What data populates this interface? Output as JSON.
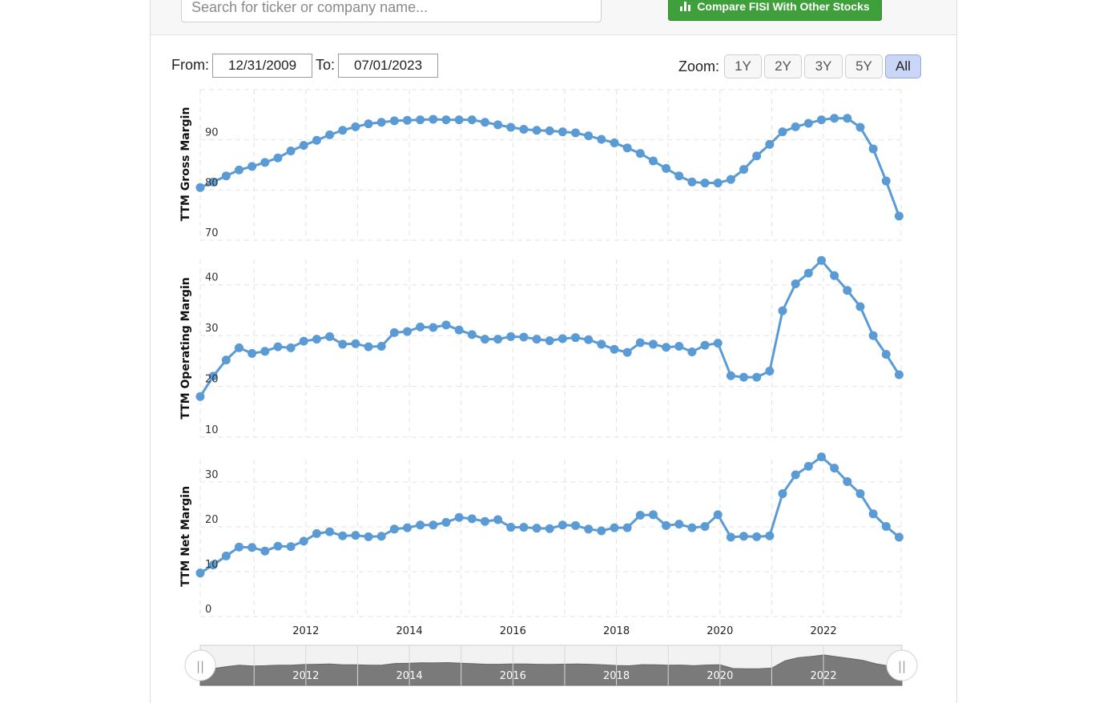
{
  "search": {
    "placeholder": "Search for ticker or company name..."
  },
  "compare_button": {
    "label": "Compare FISI With Other Stocks"
  },
  "range": {
    "from_label": "From:",
    "from_value": "12/31/2009",
    "to_label": "To:",
    "to_value": "07/01/2023"
  },
  "zoom": {
    "label": "Zoom:",
    "options": [
      "1Y",
      "2Y",
      "3Y",
      "5Y",
      "All"
    ],
    "active": "All"
  },
  "colors": {
    "series": "#5b9bd5",
    "grid": "#e3e3e3",
    "navigator_fill": "#7a7a7a",
    "active_zoom": "#c9d6f7"
  },
  "chart_data": {
    "type": "line",
    "x_start": 2009.96,
    "x_step": 0.25,
    "xlim": [
      2009.96,
      2023.5
    ],
    "x_ticks": [
      "2012",
      "2014",
      "2016",
      "2018",
      "2020",
      "2022"
    ],
    "panels": [
      {
        "ylabel": "TTM Gross Margin",
        "ylim": [
          70,
          100
        ],
        "y_ticks": [
          "70",
          "80",
          "90"
        ],
        "values": [
          80.5,
          81.6,
          82.8,
          84.0,
          84.7,
          85.5,
          86.4,
          87.8,
          88.9,
          89.9,
          91.0,
          91.9,
          92.6,
          93.2,
          93.5,
          93.8,
          93.9,
          94.0,
          94.1,
          94.0,
          94.0,
          94.0,
          93.5,
          93.0,
          92.5,
          92.1,
          91.9,
          91.8,
          91.6,
          91.4,
          90.8,
          90.1,
          89.4,
          88.4,
          87.3,
          85.8,
          84.3,
          82.8,
          81.6,
          81.4,
          81.4,
          82.1,
          84.1,
          86.8,
          89.1,
          91.6,
          92.6,
          93.3,
          94.0,
          94.3,
          94.3,
          92.5,
          88.2,
          81.8,
          74.8
        ]
      },
      {
        "ylabel": "TTM Operating Margin",
        "ylim": [
          10,
          45
        ],
        "y_ticks": [
          "10",
          "20",
          "30",
          "40"
        ],
        "values": [
          18.0,
          22.0,
          25.2,
          27.6,
          26.5,
          26.9,
          27.8,
          27.6,
          28.9,
          29.3,
          29.8,
          28.3,
          28.4,
          27.8,
          27.9,
          30.6,
          30.8,
          31.7,
          31.6,
          32.1,
          31.1,
          30.2,
          29.3,
          29.3,
          29.8,
          29.7,
          29.3,
          29.0,
          29.4,
          29.6,
          29.2,
          28.3,
          27.3,
          26.7,
          28.6,
          28.3,
          27.7,
          27.9,
          26.8,
          28.1,
          28.5,
          22.1,
          21.8,
          21.8,
          23.0,
          34.9,
          40.2,
          42.3,
          44.8,
          41.8,
          38.9,
          35.7,
          30.0,
          26.3,
          22.3
        ]
      },
      {
        "ylabel": "TTM Net Margin",
        "ylim": [
          0,
          35
        ],
        "y_ticks": [
          "0",
          "10",
          "20",
          "30"
        ],
        "values": [
          9.7,
          11.5,
          13.5,
          15.5,
          15.4,
          14.6,
          15.7,
          15.6,
          16.8,
          18.5,
          18.9,
          18.0,
          18.1,
          17.8,
          17.9,
          19.5,
          19.8,
          20.4,
          20.4,
          21.0,
          22.1,
          21.8,
          21.2,
          21.6,
          19.9,
          19.9,
          19.7,
          19.6,
          20.4,
          20.3,
          19.5,
          19.1,
          19.8,
          19.8,
          22.6,
          22.7,
          20.3,
          20.6,
          19.8,
          20.1,
          22.7,
          17.7,
          17.9,
          17.8,
          18.0,
          27.4,
          31.6,
          33.5,
          35.6,
          33.1,
          30.1,
          27.4,
          22.9,
          20.1,
          17.7
        ]
      }
    ],
    "navigator": {
      "x_ticks": [
        "2012",
        "2014",
        "2016",
        "2018",
        "2020",
        "2022"
      ],
      "left_handle": "||",
      "right_handle": "||"
    }
  }
}
